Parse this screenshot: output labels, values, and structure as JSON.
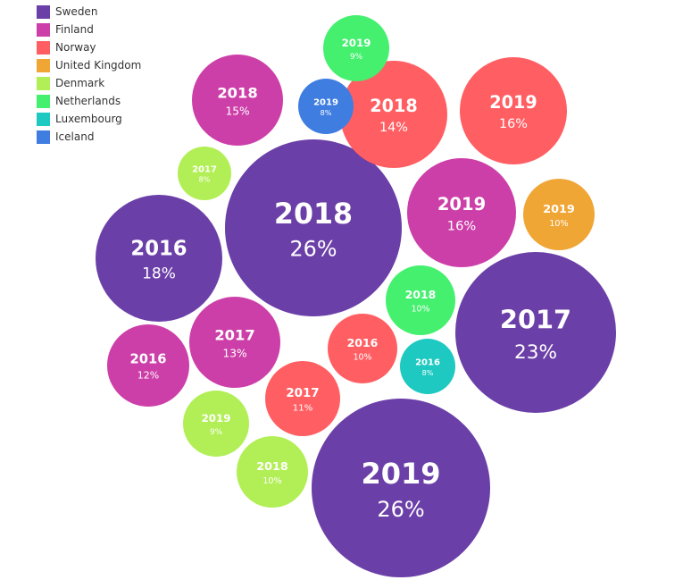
{
  "chart_data": {
    "type": "bubble",
    "legend_position": "top-left",
    "legend": [
      {
        "name": "Sweden",
        "color": "#6b3fa8"
      },
      {
        "name": "Finland",
        "color": "#cd3fa8"
      },
      {
        "name": "Norway",
        "color": "#ff5f63"
      },
      {
        "name": "United Kingdom",
        "color": "#f0a635"
      },
      {
        "name": "Denmark",
        "color": "#b2ef56"
      },
      {
        "name": "Netherlands",
        "color": "#44f06e"
      },
      {
        "name": "Luxembourg",
        "color": "#1dc9c0"
      },
      {
        "name": "Iceland",
        "color": "#3f7de0"
      }
    ],
    "bubbles": [
      {
        "country": "Sweden",
        "year": "2018",
        "label": "26%",
        "value": 26
      },
      {
        "country": "Sweden",
        "year": "2019",
        "label": "26%",
        "value": 26
      },
      {
        "country": "Sweden",
        "year": "2017",
        "label": "23%",
        "value": 23
      },
      {
        "country": "Sweden",
        "year": "2016",
        "label": "18%",
        "value": 18
      },
      {
        "country": "Finland",
        "year": "2019",
        "label": "16%",
        "value": 16
      },
      {
        "country": "Finland",
        "year": "2018",
        "label": "15%",
        "value": 15
      },
      {
        "country": "Finland",
        "year": "2017",
        "label": "13%",
        "value": 13
      },
      {
        "country": "Finland",
        "year": "2016",
        "label": "12%",
        "value": 12
      },
      {
        "country": "Norway",
        "year": "2019",
        "label": "16%",
        "value": 16
      },
      {
        "country": "Norway",
        "year": "2018",
        "label": "14%",
        "value": 14
      },
      {
        "country": "Norway",
        "year": "2017",
        "label": "11%",
        "value": 11
      },
      {
        "country": "Norway",
        "year": "2016",
        "label": "10%",
        "value": 10
      },
      {
        "country": "United Kingdom",
        "year": "2019",
        "label": "10%",
        "value": 10
      },
      {
        "country": "Denmark",
        "year": "2018",
        "label": "10%",
        "value": 10
      },
      {
        "country": "Denmark",
        "year": "2019",
        "label": "9%",
        "value": 9
      },
      {
        "country": "Denmark",
        "year": "2017",
        "label": "8%",
        "value": 8
      },
      {
        "country": "Netherlands",
        "year": "2018",
        "label": "10%",
        "value": 10
      },
      {
        "country": "Netherlands",
        "year": "2019",
        "label": "9%",
        "value": 9
      },
      {
        "country": "Luxembourg",
        "year": "2016",
        "label": "8%",
        "value": 8
      },
      {
        "country": "Iceland",
        "year": "2019",
        "label": "8%",
        "value": 8
      }
    ]
  }
}
